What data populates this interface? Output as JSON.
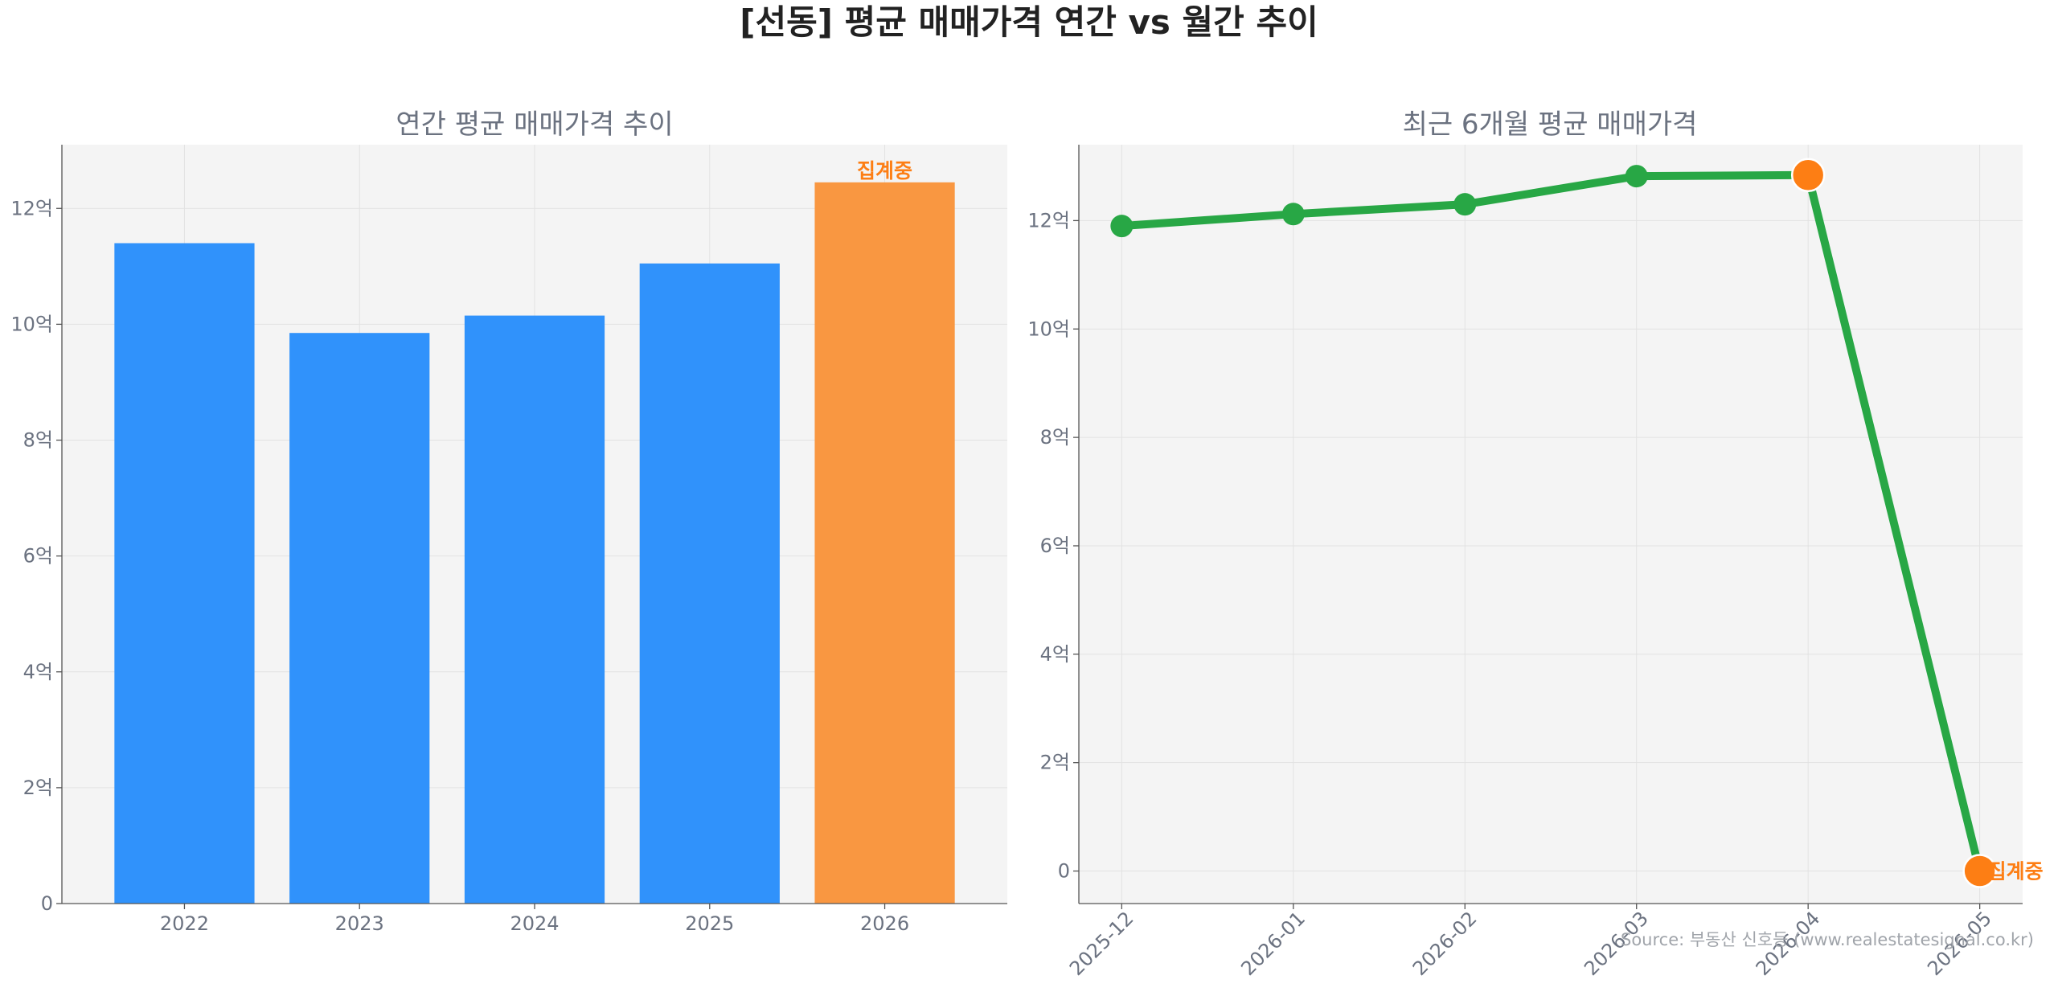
{
  "title": "[선동] 평균 매매가격 연간 vs 월간 추이",
  "source": "Source: 부동산 신호등 (www.realestatesignal.co.kr)",
  "colors": {
    "bar": "#3092fb",
    "bar_highlight": "#f99741",
    "line": "#28a745",
    "highlight_point": "#fd7e14",
    "annotation": "#fd7e14"
  },
  "chart_data": [
    {
      "type": "bar",
      "title": "연간 평균 매매가격 추이",
      "categories": [
        "2022",
        "2023",
        "2024",
        "2025",
        "2026"
      ],
      "values": [
        11.4,
        9.85,
        10.15,
        11.05,
        12.45
      ],
      "highlight_index": 4,
      "annotation": "집계중",
      "ylim": [
        0,
        13.1
      ],
      "yticks": [
        0,
        2,
        4,
        6,
        8,
        10,
        12
      ],
      "ytick_labels": [
        "0",
        "2억",
        "4억",
        "6억",
        "8억",
        "10억",
        "12억"
      ],
      "grid": true,
      "xlabel": "",
      "ylabel": ""
    },
    {
      "type": "line",
      "title": "최근 6개월 평균 매매가격",
      "categories": [
        "2025-12",
        "2026-01",
        "2026-02",
        "2026-03",
        "2026-04",
        "2026-05"
      ],
      "values": [
        11.9,
        12.12,
        12.3,
        12.82,
        12.84,
        0
      ],
      "highlight_indices": [
        4,
        5
      ],
      "annotation": "집계중",
      "annotation_index": 5,
      "ylim": [
        -0.6,
        13.4
      ],
      "yticks": [
        0,
        2,
        4,
        6,
        8,
        10,
        12
      ],
      "ytick_labels": [
        "0",
        "2억",
        "4억",
        "6억",
        "8억",
        "10억",
        "12억"
      ],
      "grid": true,
      "xlabel": "",
      "ylabel": ""
    }
  ]
}
